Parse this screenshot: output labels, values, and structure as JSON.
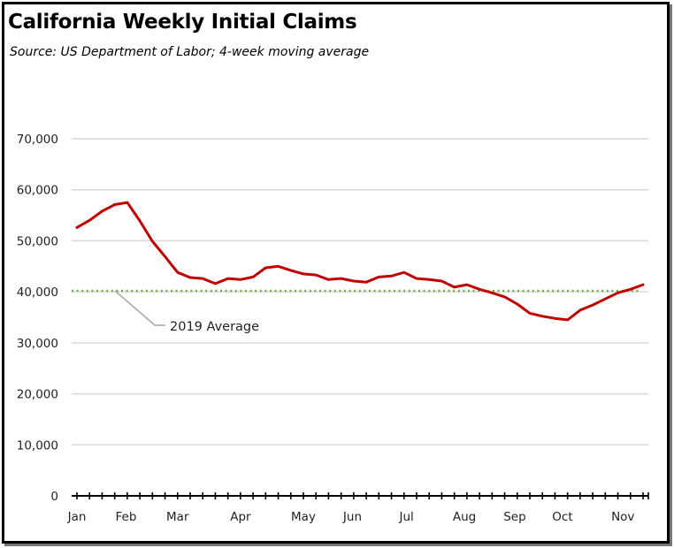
{
  "chart_data": {
    "type": "line",
    "title": "California Weekly Initial Claims",
    "subtitle": "Source:  US Department of Labor; 4-week moving average",
    "xlabel": "",
    "ylabel": "",
    "ylim": [
      0,
      70000
    ],
    "yticks": [
      0,
      10000,
      20000,
      30000,
      40000,
      50000,
      60000,
      70000
    ],
    "ytick_labels": [
      "0",
      "10,000",
      "20,000",
      "30,000",
      "40,000",
      "50,000",
      "60,000",
      "70,000"
    ],
    "x_weeks": 46,
    "month_labels": [
      {
        "label": "Jan",
        "week": 0
      },
      {
        "label": "Feb",
        "week": 3.9
      },
      {
        "label": "Mar",
        "week": 8
      },
      {
        "label": "Apr",
        "week": 13
      },
      {
        "label": "May",
        "week": 18
      },
      {
        "label": "Jun",
        "week": 21.9
      },
      {
        "label": "Jul",
        "week": 26.2
      },
      {
        "label": "Aug",
        "week": 30.8
      },
      {
        "label": "Sep",
        "week": 34.8
      },
      {
        "label": "Oct",
        "week": 38.6
      },
      {
        "label": "Nov",
        "week": 43.4
      }
    ],
    "grid": true,
    "series": [
      {
        "name": "Weekly Initial Claims (4-week moving average)",
        "color": "#c00000",
        "values": [
          52600,
          54000,
          55800,
          57100,
          57500,
          53900,
          49900,
          46900,
          43800,
          42800,
          42600,
          41600,
          42600,
          42400,
          42900,
          44700,
          45000,
          44200,
          43500,
          43300,
          42400,
          42600,
          42100,
          41900,
          42900,
          43100,
          43800,
          42600,
          42400,
          42100,
          40900,
          41400,
          40500,
          39800,
          39000,
          37600,
          35800,
          35200,
          34800,
          34500,
          36400,
          37400,
          38600,
          39800,
          40500,
          41400
        ]
      }
    ],
    "reference_line": {
      "name": "2019 Average",
      "value": 40200,
      "color": "#70ad47",
      "label": "2019 Average"
    }
  }
}
